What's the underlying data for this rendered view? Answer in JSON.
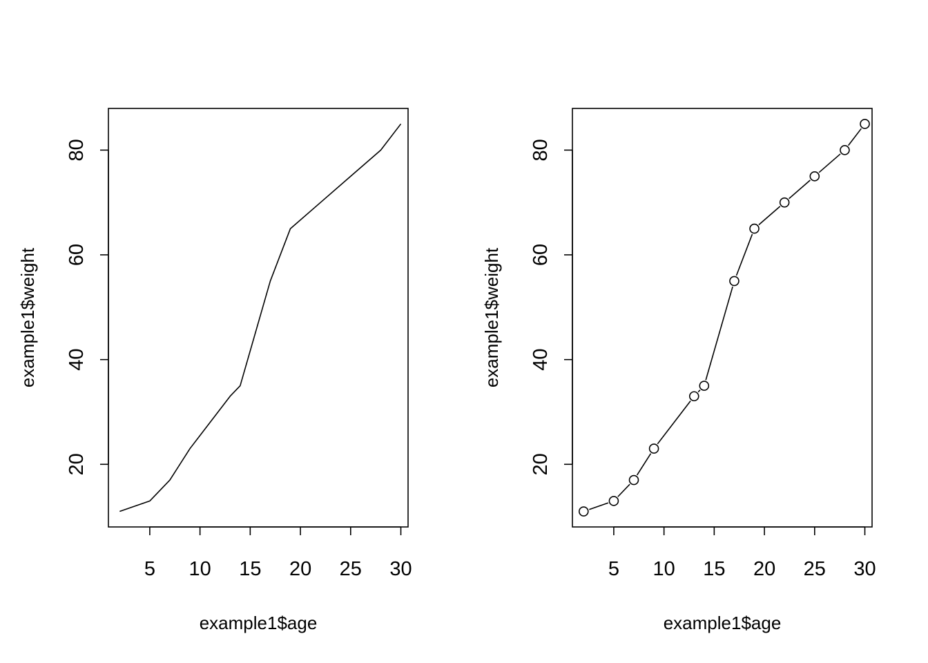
{
  "chart_data": [
    {
      "type": "line",
      "markers": false,
      "xlabel": "example1$age",
      "ylabel": "example1$weight",
      "x": [
        2,
        5,
        7,
        9,
        13,
        14,
        17,
        19,
        22,
        25,
        28,
        30
      ],
      "y": [
        11,
        13,
        17,
        23,
        33,
        35,
        55,
        65,
        70,
        75,
        80,
        85
      ],
      "xlim": [
        0.88,
        30.72
      ],
      "ylim": [
        8.04,
        87.96
      ],
      "xticks": [
        5,
        10,
        15,
        20,
        25,
        30
      ],
      "yticks": [
        20,
        40,
        60,
        80
      ],
      "grid": false,
      "color": "#000000"
    },
    {
      "type": "line",
      "markers": true,
      "marker_shape": "open-circle",
      "xlabel": "example1$age",
      "ylabel": "example1$weight",
      "x": [
        2,
        5,
        7,
        9,
        13,
        14,
        17,
        19,
        22,
        25,
        28,
        30
      ],
      "y": [
        11,
        13,
        17,
        23,
        33,
        35,
        55,
        65,
        70,
        75,
        80,
        85
      ],
      "xlim": [
        0.88,
        30.72
      ],
      "ylim": [
        8.04,
        87.96
      ],
      "xticks": [
        5,
        10,
        15,
        20,
        25,
        30
      ],
      "yticks": [
        20,
        40,
        60,
        80
      ],
      "grid": false,
      "color": "#000000"
    }
  ]
}
